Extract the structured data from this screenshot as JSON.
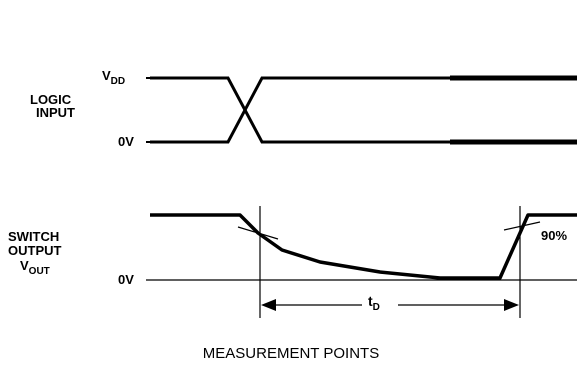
{
  "signals": {
    "logic_input": {
      "label_line1": "LOGIC",
      "label_line2": "INPUT",
      "high_level": {
        "main": "V",
        "sub": "DD"
      },
      "low_level": "0V"
    },
    "switch_output": {
      "label_line1": "SWITCH",
      "label_line2": "OUTPUT",
      "label_line3": {
        "main": "V",
        "sub": "OUT"
      },
      "low_level": "0V",
      "threshold_label": "90%"
    }
  },
  "delay": {
    "main": "t",
    "sub": "D"
  },
  "caption": "MEASUREMENT POINTS",
  "colors": {
    "line": "#000000",
    "background": "#ffffff"
  }
}
